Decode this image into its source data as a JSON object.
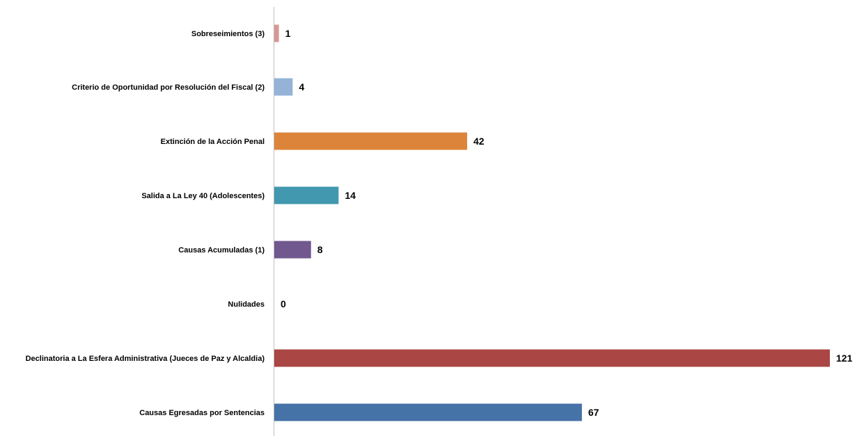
{
  "chart_data": {
    "type": "bar",
    "orientation": "horizontal",
    "categories": [
      "Sobreseimientos (3)",
      "Criterio de Oportunidad por Resolución del Fiscal (2)",
      "Extinción de la Acción Penal",
      "Salida a La Ley 40 (Adolescentes)",
      "Causas Acumuladas (1)",
      "Nulidades",
      "Declinatoria a La Esfera Administrativa (Jueces de Paz y Alcaldia)",
      "Causas Egresadas por Sentencias"
    ],
    "values": [
      1,
      4,
      42,
      14,
      8,
      0,
      121,
      67
    ],
    "colors": [
      "#D99694",
      "#95B3D7",
      "#DD843B",
      "#4198AF",
      "#71588F",
      "#4F81BD",
      "#AA4643",
      "#4572A7"
    ],
    "title": "",
    "xlabel": "",
    "ylabel": "",
    "xlim": [
      0,
      121
    ],
    "grid": false,
    "legend": "none",
    "data_labels": true
  }
}
